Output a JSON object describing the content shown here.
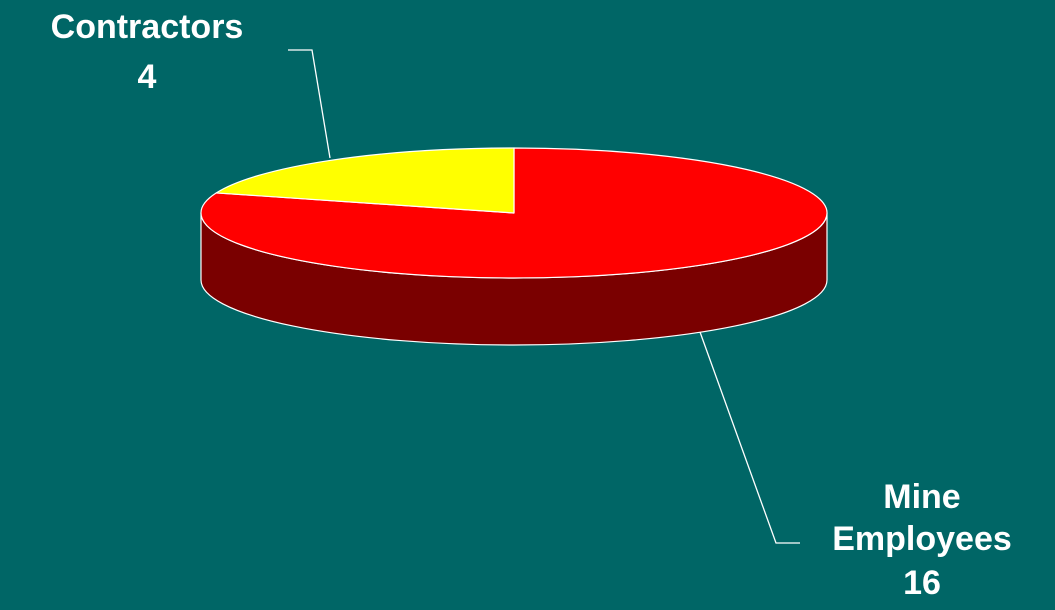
{
  "chart_data": {
    "type": "pie",
    "style": "3d",
    "title": "",
    "legend": false,
    "slices": [
      {
        "label": "Mine Employees",
        "label_lines": [
          "Mine",
          "Employees"
        ],
        "value": 16,
        "color": "#ff0000",
        "side_color": "#7a0000"
      },
      {
        "label": "Contractors",
        "label_lines": [
          "Contractors"
        ],
        "value": 4,
        "color": "#ffff00",
        "side_color": "#8a8a00"
      }
    ]
  }
}
